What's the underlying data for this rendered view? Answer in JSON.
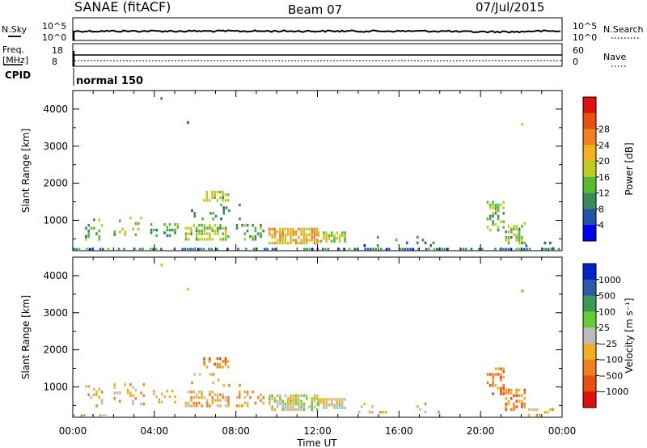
{
  "header": {
    "site": "SANAE (fitACF)",
    "beam": "Beam 07",
    "date": "07/Jul/2015"
  },
  "top_panels": {
    "nsky_label": "N.Sky",
    "nsky_ticks": [
      "10^5",
      "10^0"
    ],
    "nsearch_label": "N.Search",
    "nsearch_ticks": [
      "10^5",
      "10^0"
    ],
    "freq_label_1": "Freq.",
    "freq_label_2": "[MHz]",
    "freq_ticks": [
      "18",
      "8"
    ],
    "nave_label": "Nave",
    "nave_ticks": [
      "60",
      "0"
    ],
    "cpid_label": "CPID",
    "cpid_value": "normal 150"
  },
  "colors": {
    "power_scale": [
      "#0000ee",
      "#2255aa",
      "#3a8a5a",
      "#55bb33",
      "#bbcc22",
      "#f0b020",
      "#f08020",
      "#e85010",
      "#e01010"
    ],
    "velocity_scale": [
      "#0022cc",
      "#2a5aa8",
      "#3a9a55",
      "#66cc33",
      "#bbbbbb",
      "#f0b020",
      "#f08020",
      "#e85010",
      "#e01010"
    ]
  },
  "chart_data": [
    {
      "type": "heatmap",
      "name": "power",
      "ylabel": "Slant Range [km]",
      "xlabel": "",
      "ylim": [
        180,
        4500
      ],
      "xlim": [
        0,
        24
      ],
      "x_ticks": [
        "00:00",
        "04:00",
        "08:00",
        "12:00",
        "16:00",
        "20:00",
        "00:00"
      ],
      "y_ticks": [
        1000,
        2000,
        3000,
        4000
      ],
      "colorbar_label": "Power [dB]",
      "colorbar_ticks": [
        "4",
        "8",
        "12",
        "16",
        "20",
        "24",
        "28"
      ],
      "regions": [
        {
          "t0": 0.0,
          "t1": 24.0,
          "r0": 180,
          "r1": 230,
          "value": 6,
          "density": 0.55
        },
        {
          "t0": 0.6,
          "t1": 1.4,
          "r0": 450,
          "r1": 1050,
          "value": 10,
          "density": 0.25
        },
        {
          "t0": 2.0,
          "t1": 3.5,
          "r0": 500,
          "r1": 1100,
          "value": 12,
          "density": 0.2
        },
        {
          "t0": 3.8,
          "t1": 5.2,
          "r0": 550,
          "r1": 900,
          "value": 10,
          "density": 0.35
        },
        {
          "t0": 5.5,
          "t1": 7.6,
          "r0": 450,
          "r1": 900,
          "value": 14,
          "density": 0.5
        },
        {
          "t0": 6.4,
          "t1": 7.6,
          "r0": 1500,
          "r1": 1800,
          "value": 14,
          "density": 0.6
        },
        {
          "t0": 5.8,
          "t1": 8.2,
          "r0": 1000,
          "r1": 1400,
          "value": 8,
          "density": 0.15
        },
        {
          "t0": 8.0,
          "t1": 9.4,
          "r0": 450,
          "r1": 900,
          "value": 10,
          "density": 0.3
        },
        {
          "t0": 9.6,
          "t1": 12.0,
          "r0": 350,
          "r1": 750,
          "value": 20,
          "density": 0.8
        },
        {
          "t0": 12.0,
          "t1": 13.4,
          "r0": 400,
          "r1": 650,
          "value": 14,
          "density": 0.75
        },
        {
          "t0": 14.0,
          "t1": 18.0,
          "r0": 280,
          "r1": 550,
          "value": 6,
          "density": 0.08
        },
        {
          "t0": 20.3,
          "t1": 21.2,
          "r0": 700,
          "r1": 1500,
          "value": 12,
          "density": 0.4
        },
        {
          "t0": 21.2,
          "t1": 22.2,
          "r0": 350,
          "r1": 950,
          "value": 14,
          "density": 0.55
        },
        {
          "t0": 22.2,
          "t1": 23.8,
          "r0": 200,
          "r1": 400,
          "value": 6,
          "density": 0.2
        }
      ],
      "isolated": [
        {
          "t": 4.3,
          "r": 4250,
          "value": 6
        },
        {
          "t": 5.6,
          "r": 3600,
          "value": 4
        },
        {
          "t": 22.0,
          "r": 3550,
          "value": 20
        }
      ]
    },
    {
      "type": "heatmap",
      "name": "velocity",
      "ylabel": "Slant Range [km]",
      "xlabel": "Time UT",
      "ylim": [
        180,
        4500
      ],
      "xlim": [
        0,
        24
      ],
      "x_ticks": [
        "00:00",
        "04:00",
        "08:00",
        "12:00",
        "16:00",
        "20:00",
        "00:00"
      ],
      "y_ticks": [
        1000,
        2000,
        3000,
        4000
      ],
      "colorbar_label": "Velocity [m s⁻¹]",
      "colorbar_ticks": [
        "1000",
        "500",
        "100",
        "25",
        "−25",
        "−100",
        "−500",
        "−1000"
      ],
      "regions": [
        {
          "t0": 0.0,
          "t1": 1.6,
          "r0": 180,
          "r1": 250,
          "value": 3,
          "density": 0.5
        },
        {
          "t0": 0.6,
          "t1": 1.4,
          "r0": 450,
          "r1": 1050,
          "value": 5,
          "density": 0.25
        },
        {
          "t0": 2.0,
          "t1": 3.5,
          "r0": 500,
          "r1": 1100,
          "value": 5,
          "density": 0.2
        },
        {
          "t0": 3.8,
          "t1": 5.2,
          "r0": 550,
          "r1": 900,
          "value": 5,
          "density": 0.35
        },
        {
          "t0": 5.5,
          "t1": 7.6,
          "r0": 450,
          "r1": 900,
          "value": 5,
          "density": 0.5
        },
        {
          "t0": 6.4,
          "t1": 7.6,
          "r0": 1500,
          "r1": 1800,
          "value": 6,
          "density": 0.6
        },
        {
          "t0": 5.8,
          "t1": 8.2,
          "r0": 1000,
          "r1": 1400,
          "value": 5,
          "density": 0.15
        },
        {
          "t0": 8.0,
          "t1": 9.4,
          "r0": 450,
          "r1": 900,
          "value": 5,
          "density": 0.3
        },
        {
          "t0": 9.6,
          "t1": 12.0,
          "r0": 350,
          "r1": 750,
          "value": 4,
          "density": 0.8
        },
        {
          "t0": 12.0,
          "t1": 13.4,
          "r0": 400,
          "r1": 650,
          "value": 4,
          "density": 0.75
        },
        {
          "t0": 14.0,
          "t1": 18.0,
          "r0": 280,
          "r1": 550,
          "value": 5,
          "density": 0.08
        },
        {
          "t0": 20.3,
          "t1": 21.2,
          "r0": 700,
          "r1": 1500,
          "value": 6,
          "density": 0.4
        },
        {
          "t0": 21.2,
          "t1": 22.2,
          "r0": 350,
          "r1": 950,
          "value": 6,
          "density": 0.55
        },
        {
          "t0": 22.2,
          "t1": 23.8,
          "r0": 200,
          "r1": 400,
          "value": 5,
          "density": 0.2
        }
      ],
      "isolated": [
        {
          "t": 4.3,
          "r": 4250,
          "value": 5
        },
        {
          "t": 5.6,
          "r": 3600,
          "value": 5
        },
        {
          "t": 22.0,
          "r": 3550,
          "value": 6
        }
      ]
    }
  ]
}
